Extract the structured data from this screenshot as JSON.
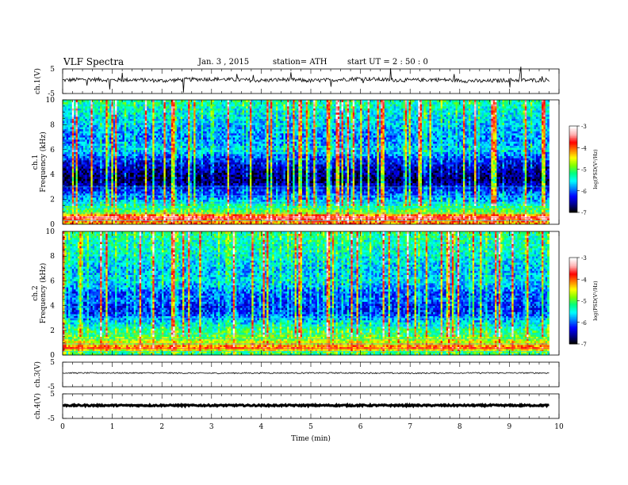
{
  "header": {
    "title": "VLF  Spectra",
    "date": "Jan.  3   , 2015",
    "station": "station= ATH",
    "start": "start  UT  =   2  : 50 : 0"
  },
  "chart_data": [
    {
      "type": "line",
      "panel": "ch1-voltage",
      "ylabel": "ch.1(V)",
      "yticks": [
        "5",
        "-5"
      ],
      "ylim": [
        -5,
        5
      ],
      "xlim": [
        0,
        10
      ],
      "x": [
        0,
        0.5,
        1,
        1.5,
        2,
        2.5,
        3,
        3.5,
        4,
        4.5,
        5,
        5.5,
        6,
        6.5,
        7,
        7.5,
        8,
        8.5,
        9,
        9.5,
        9.8
      ],
      "values": [
        0.4,
        0.8,
        0.5,
        0.6,
        0.2,
        0.7,
        0.9,
        0.6,
        0.3,
        0.7,
        0.2,
        0.6,
        1.1,
        0.6,
        0.4,
        0.7,
        0.3,
        0.0,
        0.5,
        0.4,
        0.6
      ]
    },
    {
      "type": "heatmap",
      "panel": "ch1-spectrogram",
      "ylabel": "ch.1\nFrequency  (kHz)",
      "yticks": [
        "0",
        "2",
        "4",
        "6",
        "8",
        "10"
      ],
      "ylim": [
        0,
        10
      ],
      "xlim": [
        0,
        10
      ],
      "data_end_min": 9.8,
      "colorbar": {
        "label": "log(PSD(V²/Hz)",
        "ticks": [
          "-3",
          "-4",
          "-5",
          "-6",
          "-7"
        ],
        "range": [
          -7,
          -3
        ]
      },
      "band_profile": [
        {
          "f": 0.2,
          "v": -4.2
        },
        {
          "f": 0.6,
          "v": -3.5
        },
        {
          "f": 1.0,
          "v": -5.0
        },
        {
          "f": 1.5,
          "v": -5.3
        },
        {
          "f": 2.0,
          "v": -5.8
        },
        {
          "f": 2.5,
          "v": -6.0
        },
        {
          "f": 3.0,
          "v": -6.4
        },
        {
          "f": 3.5,
          "v": -6.8
        },
        {
          "f": 4.0,
          "v": -6.7
        },
        {
          "f": 4.5,
          "v": -6.5
        },
        {
          "f": 5.0,
          "v": -6.3
        },
        {
          "f": 5.5,
          "v": -6.0
        },
        {
          "f": 6.0,
          "v": -5.6
        },
        {
          "f": 6.5,
          "v": -5.8
        },
        {
          "f": 7.0,
          "v": -5.9
        },
        {
          "f": 7.5,
          "v": -5.8
        },
        {
          "f": 8.0,
          "v": -5.7
        },
        {
          "f": 8.5,
          "v": -5.6
        },
        {
          "f": 9.0,
          "v": -5.5
        },
        {
          "f": 9.5,
          "v": -5.4
        },
        {
          "f": 10.0,
          "v": -5.3
        }
      ]
    },
    {
      "type": "heatmap",
      "panel": "ch2-spectrogram",
      "ylabel": "ch.2\nFrequency  (kHz)",
      "yticks": [
        "0",
        "2",
        "4",
        "6",
        "8",
        "10"
      ],
      "ylim": [
        0,
        10
      ],
      "xlim": [
        0,
        10
      ],
      "data_end_min": 9.8,
      "colorbar": {
        "label": "log(PSD(V²/Hz)",
        "ticks": [
          "-3",
          "-4",
          "-5",
          "-6",
          "-7"
        ],
        "range": [
          -7,
          -3
        ]
      },
      "band_profile": [
        {
          "f": 0.2,
          "v": -5.2
        },
        {
          "f": 0.6,
          "v": -4.0
        },
        {
          "f": 1.0,
          "v": -4.5
        },
        {
          "f": 1.5,
          "v": -5.0
        },
        {
          "f": 2.0,
          "v": -5.2
        },
        {
          "f": 2.5,
          "v": -5.5
        },
        {
          "f": 3.0,
          "v": -5.9
        },
        {
          "f": 3.5,
          "v": -6.2
        },
        {
          "f": 4.0,
          "v": -6.2
        },
        {
          "f": 4.5,
          "v": -6.0
        },
        {
          "f": 5.0,
          "v": -6.1
        },
        {
          "f": 5.5,
          "v": -5.8
        },
        {
          "f": 6.0,
          "v": -5.6
        },
        {
          "f": 6.5,
          "v": -5.7
        },
        {
          "f": 7.0,
          "v": -5.7
        },
        {
          "f": 7.5,
          "v": -5.6
        },
        {
          "f": 8.0,
          "v": -5.5
        },
        {
          "f": 8.5,
          "v": -5.4
        },
        {
          "f": 9.0,
          "v": -5.4
        },
        {
          "f": 9.5,
          "v": -5.3
        },
        {
          "f": 10.0,
          "v": -5.2
        }
      ]
    },
    {
      "type": "line",
      "panel": "ch3-voltage",
      "ylabel": "ch.3(V)",
      "yticks": [
        "5",
        "-5"
      ],
      "ylim": [
        -5,
        5
      ],
      "xlim": [
        0,
        10
      ],
      "x": [
        0,
        1,
        2,
        3,
        4,
        5,
        6,
        7,
        8,
        9,
        9.8
      ],
      "values": [
        0.6,
        0.6,
        0.6,
        0.5,
        0.6,
        0.6,
        0.6,
        0.5,
        0.6,
        0.6,
        0.6
      ]
    },
    {
      "type": "line",
      "panel": "ch4-voltage",
      "ylabel": "ch.4(V)",
      "yticks": [
        "5",
        "-5"
      ],
      "ylim": [
        -5,
        5
      ],
      "xlim": [
        0,
        10
      ],
      "x": [
        0,
        1,
        2,
        3,
        4,
        5,
        6,
        7,
        8,
        9,
        9.8
      ],
      "values": [
        0.3,
        0.3,
        0.3,
        0.3,
        0.3,
        0.3,
        0.3,
        0.3,
        0.3,
        0.3,
        0.3
      ]
    }
  ],
  "xaxis": {
    "label": "Time  (min)",
    "ticks": [
      "0",
      "1",
      "2",
      "3",
      "4",
      "5",
      "6",
      "7",
      "8",
      "9",
      "10"
    ]
  },
  "colormap": [
    "#000000",
    "#00008f",
    "#0000ff",
    "#0080ff",
    "#00ffff",
    "#00ff80",
    "#80ff00",
    "#ffff00",
    "#ff8000",
    "#ff0000",
    "#ffb0b0",
    "#ffffff"
  ]
}
